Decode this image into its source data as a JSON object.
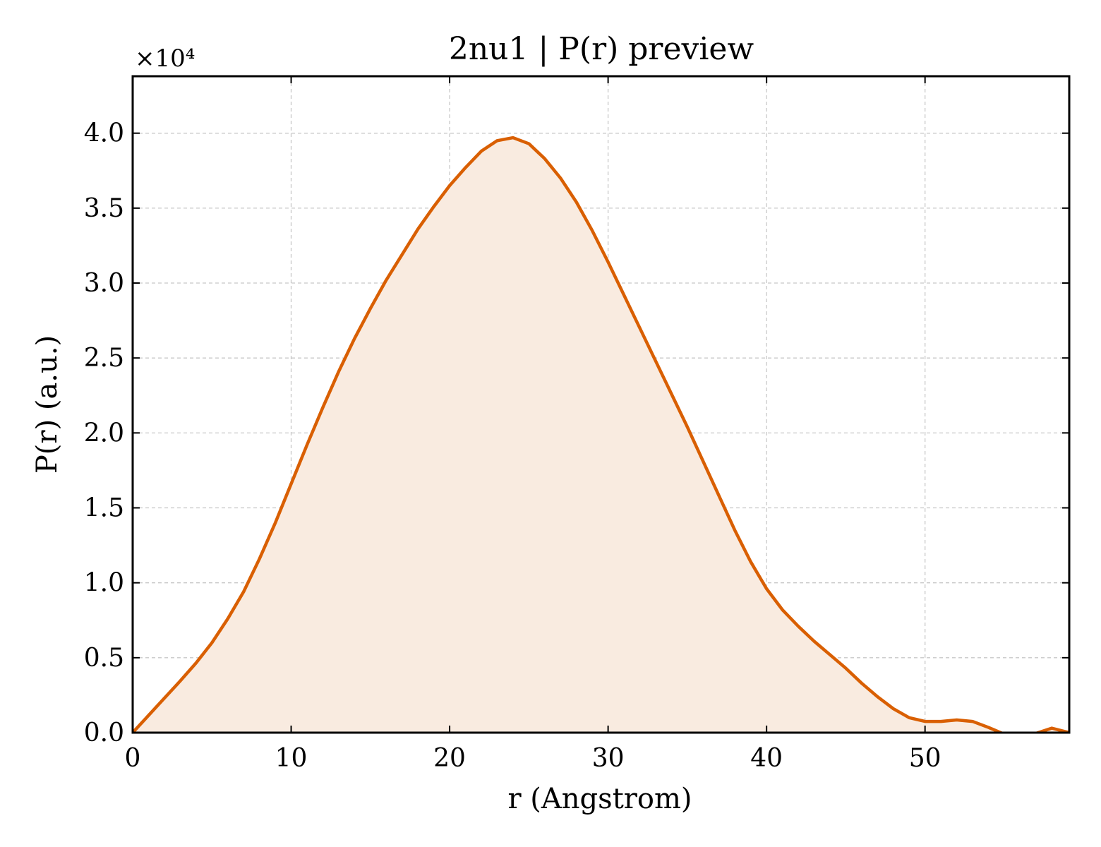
{
  "chart_data": {
    "type": "area",
    "title": "2nu1 | P(r) preview",
    "xlabel": "r (Angstrom)",
    "ylabel": "P(r) (a.u.)",
    "y_offset_text": "×10⁴",
    "xlim": [
      0,
      59.1
    ],
    "ylim": [
      0,
      43800
    ],
    "xticks": [
      0,
      10,
      20,
      30,
      40,
      50
    ],
    "xtick_labels": [
      "0",
      "10",
      "20",
      "30",
      "40",
      "50"
    ],
    "yticks": [
      0,
      5000,
      10000,
      15000,
      20000,
      25000,
      30000,
      35000,
      40000
    ],
    "ytick_labels": [
      "0.0",
      "0.5",
      "1.0",
      "1.5",
      "2.0",
      "2.5",
      "3.0",
      "3.5",
      "4.0"
    ],
    "grid": true,
    "line_color": "#d95f02",
    "fill_color": "#f9ebe0",
    "series": [
      {
        "name": "",
        "x": [
          0,
          1,
          2,
          3,
          4,
          5,
          6,
          7,
          8,
          9,
          10,
          11,
          12,
          13,
          14,
          15,
          16,
          17,
          18,
          19,
          20,
          21,
          22,
          23,
          24,
          25,
          26,
          27,
          28,
          29,
          30,
          31,
          32,
          33,
          34,
          35,
          36,
          37,
          38,
          39,
          40,
          41,
          42,
          43,
          44,
          45,
          46,
          47,
          48,
          49,
          50,
          51,
          52,
          53,
          54,
          55,
          56,
          57,
          58,
          59.1
        ],
        "y": [
          0,
          1150,
          2300,
          3450,
          4650,
          6000,
          7600,
          9400,
          11600,
          14000,
          16600,
          19200,
          21700,
          24100,
          26300,
          28300,
          30200,
          31900,
          33600,
          35100,
          36500,
          37700,
          38800,
          39500,
          39700,
          39300,
          38300,
          37000,
          35400,
          33500,
          31400,
          29200,
          27000,
          24800,
          22600,
          20400,
          18100,
          15800,
          13500,
          11400,
          9600,
          8200,
          7100,
          6100,
          5200,
          4300,
          3300,
          2400,
          1600,
          1000,
          750,
          750,
          850,
          750,
          350,
          -100,
          -150,
          -50,
          300,
          0
        ]
      }
    ]
  }
}
